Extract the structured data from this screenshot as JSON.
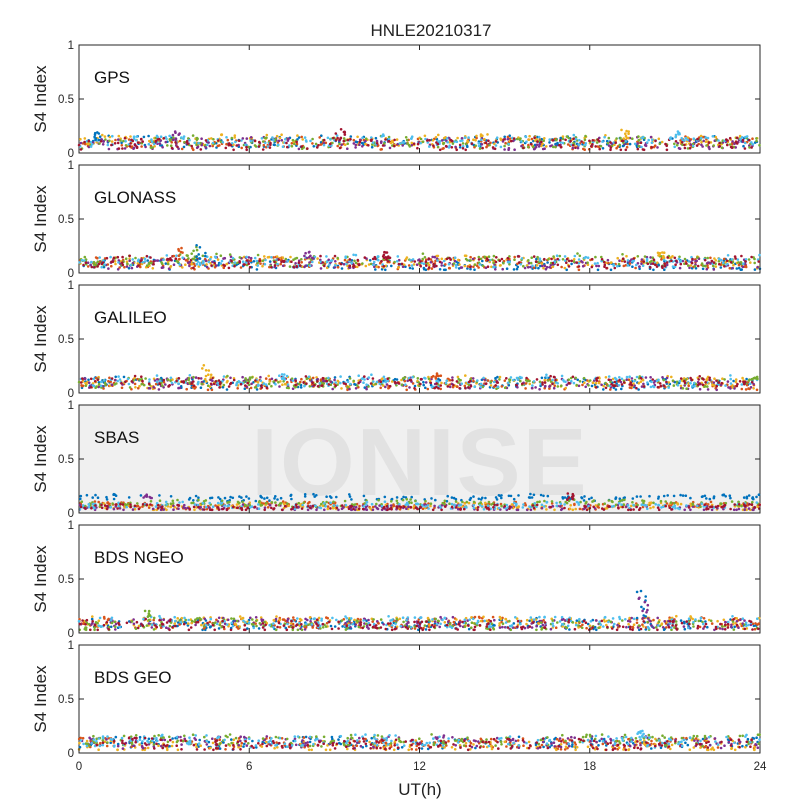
{
  "chart_data": {
    "type": "scatter",
    "title": "HNLE20210317",
    "xlabel": "UT(h)",
    "ylabel": "S4 Index",
    "xlim": [
      0,
      24
    ],
    "ylim": [
      0,
      1
    ],
    "xticks": [
      "0",
      "6",
      "12",
      "18",
      "24"
    ],
    "yticks": [
      "0",
      "0.5",
      "1"
    ],
    "watermark": "IONISE",
    "colors": [
      "#0072BD",
      "#D95319",
      "#EDB120",
      "#7E2F8E",
      "#77AC30",
      "#4DBEEE",
      "#A2142F"
    ],
    "panels": [
      {
        "label": "GPS",
        "series_baseline_s4": [
          0.1,
          0.09,
          0.12,
          0.09,
          0.1,
          0.11,
          0.08
        ],
        "peaks": [
          {
            "ut": 0.7,
            "s4": 0.22
          },
          {
            "ut": 3.4,
            "s4": 0.21
          },
          {
            "ut": 9.2,
            "s4": 0.22
          },
          {
            "ut": 19.2,
            "s4": 0.24
          },
          {
            "ut": 21.0,
            "s4": 0.21
          }
        ]
      },
      {
        "label": "GLONASS",
        "series_baseline_s4": [
          0.07,
          0.09,
          0.1,
          0.09,
          0.12,
          0.11,
          0.1
        ],
        "peaks": [
          {
            "ut": 3.5,
            "s4": 0.28
          },
          {
            "ut": 4.0,
            "s4": 0.27
          },
          {
            "ut": 4.3,
            "s4": 0.26
          },
          {
            "ut": 8.1,
            "s4": 0.2
          },
          {
            "ut": 10.8,
            "s4": 0.2
          },
          {
            "ut": 20.5,
            "s4": 0.19
          }
        ]
      },
      {
        "label": "GALILEO",
        "series_baseline_s4": [
          0.09,
          0.08,
          0.1,
          0.09,
          0.1,
          0.11,
          0.1
        ],
        "peaks": [
          {
            "ut": 4.5,
            "s4": 0.26
          },
          {
            "ut": 7.2,
            "s4": 0.18
          },
          {
            "ut": 12.6,
            "s4": 0.19
          },
          {
            "ut": 23.8,
            "s4": 0.15
          }
        ]
      },
      {
        "label": "SBAS",
        "series_baseline_s4": [
          0.14,
          0.07,
          0.06,
          0.05,
          0.09,
          0.07,
          0.05
        ],
        "peaks": [
          {
            "ut": 2.4,
            "s4": 0.19
          },
          {
            "ut": 17.3,
            "s4": 0.19
          }
        ]
      },
      {
        "label": "BDS NGEO",
        "series_baseline_s4": [
          0.08,
          0.09,
          0.1,
          0.09,
          0.08,
          0.1,
          0.07
        ],
        "peaks": [
          {
            "ut": 2.5,
            "s4": 0.22
          },
          {
            "ut": 19.8,
            "s4": 0.4
          },
          {
            "ut": 19.9,
            "s4": 0.34
          }
        ]
      },
      {
        "label": "BDS GEO",
        "series_baseline_s4": [
          0.09,
          0.09,
          0.07,
          0.1,
          0.12,
          0.11,
          0.08
        ],
        "peaks": [
          {
            "ut": 19.8,
            "s4": 0.21
          }
        ]
      }
    ]
  }
}
